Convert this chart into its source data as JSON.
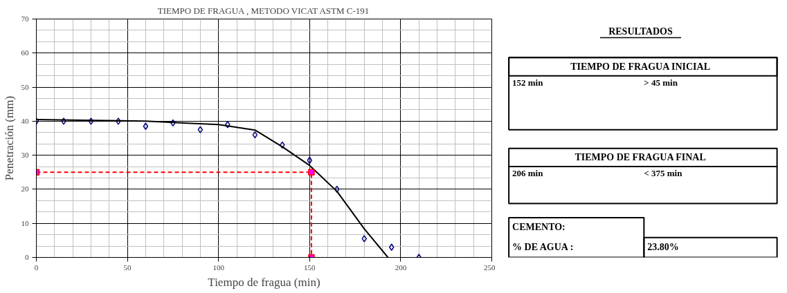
{
  "chart_data": {
    "type": "scatter",
    "title": "TIEMPO DE FRAGUA , METODO VICAT ASTM C-191",
    "xlabel": "Tiempo de fragua (min)",
    "ylabel": "Penetración (mm)",
    "xlim": [
      0,
      250
    ],
    "ylim": [
      0,
      70
    ],
    "xticks": [
      0,
      50,
      100,
      150,
      200,
      250
    ],
    "yticks": [
      0,
      10,
      20,
      30,
      40,
      50,
      60,
      70
    ],
    "grid": true,
    "series": [
      {
        "marker": "diamond",
        "color": "#000080",
        "x": [
          0,
          15,
          30,
          45,
          60,
          75,
          90,
          105,
          120,
          135,
          150,
          165,
          180,
          195,
          210
        ],
        "values": [
          40,
          40,
          40,
          40,
          38.5,
          39.5,
          37.5,
          39,
          36,
          33,
          28.5,
          20,
          5.5,
          3,
          0
        ]
      },
      {
        "type": "line",
        "marker": "none",
        "line_style": "solid",
        "color": "#000000",
        "x": [
          0,
          60,
          100,
          120,
          135,
          150,
          165,
          180,
          193
        ],
        "values": [
          40.5,
          40,
          39,
          37.4,
          32.5,
          27,
          19.4,
          8.4,
          0
        ]
      },
      {
        "type": "line",
        "marker": "square",
        "line_style": "dashed",
        "color": "#ff0000",
        "x": [
          0,
          151,
          151
        ],
        "values": [
          25,
          25,
          0
        ]
      }
    ],
    "annotations": [
      "RESULTADOS",
      "TIEMPO DE FRAGUA INICIAL",
      "152 min",
      "> 45 min",
      "TIEMPO DE FRAGUA FINAL",
      "206 min",
      "< 375 min",
      "CEMENTO:",
      "% DE AGUA :",
      "23.80%"
    ]
  }
}
